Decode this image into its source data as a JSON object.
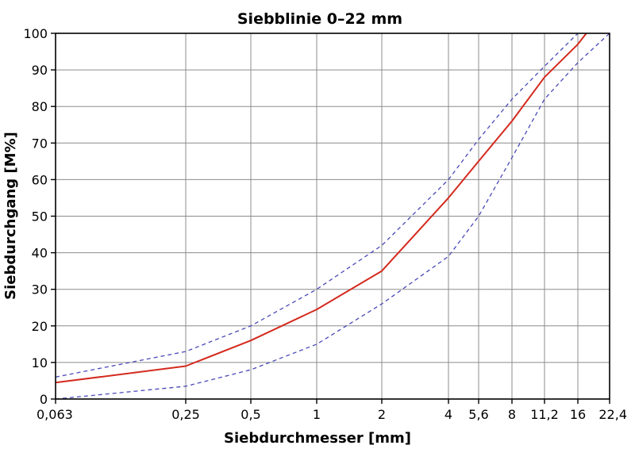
{
  "chart_data": {
    "type": "line",
    "title": "Siebblinie 0–22 mm",
    "xlabel": "Siebdurchmesser [mm]",
    "ylabel": "Siebdurchgang [M%]",
    "x_scale": "categorical-log",
    "x_ticks": [
      "0,063",
      "0,25",
      "0,5",
      "1",
      "2",
      "4",
      "5,6",
      "8",
      "11,2",
      "16",
      "22,4"
    ],
    "x_values": [
      0.063,
      0.25,
      0.5,
      1,
      2,
      4,
      5.6,
      8,
      11.2,
      16,
      22.4
    ],
    "y_ticks": [
      "0",
      "10",
      "20",
      "30",
      "40",
      "50",
      "60",
      "70",
      "80",
      "90",
      "100"
    ],
    "ylim": [
      0,
      100
    ],
    "grid": true,
    "legend": "none",
    "series": [
      {
        "role": "upper-limit",
        "style": "dashed",
        "color": "#4a4ab8",
        "points": [
          [
            0.063,
            6
          ],
          [
            0.25,
            13
          ],
          [
            0.5,
            20
          ],
          [
            1,
            30
          ],
          [
            2,
            42
          ],
          [
            4,
            60
          ],
          [
            5.6,
            71
          ],
          [
            8,
            82
          ],
          [
            11.2,
            91
          ],
          [
            16,
            100
          ]
        ]
      },
      {
        "role": "grading-curve",
        "style": "solid",
        "color": "#d42a1e",
        "points": [
          [
            0.063,
            4.5
          ],
          [
            0.25,
            9
          ],
          [
            0.5,
            16
          ],
          [
            1,
            24.5
          ],
          [
            2,
            35
          ],
          [
            4,
            55
          ],
          [
            5.6,
            65
          ],
          [
            8,
            76
          ],
          [
            11.2,
            88
          ],
          [
            16,
            97
          ],
          [
            17.5,
            100
          ]
        ]
      },
      {
        "role": "lower-limit",
        "style": "dashed",
        "color": "#4a4ab8",
        "points": [
          [
            0.063,
            0
          ],
          [
            0.25,
            3.5
          ],
          [
            0.5,
            8
          ],
          [
            1,
            15
          ],
          [
            2,
            26
          ],
          [
            4,
            39
          ],
          [
            5.6,
            50
          ],
          [
            8,
            66
          ],
          [
            11.2,
            82
          ],
          [
            16,
            92
          ],
          [
            22.4,
            100
          ]
        ]
      }
    ]
  }
}
